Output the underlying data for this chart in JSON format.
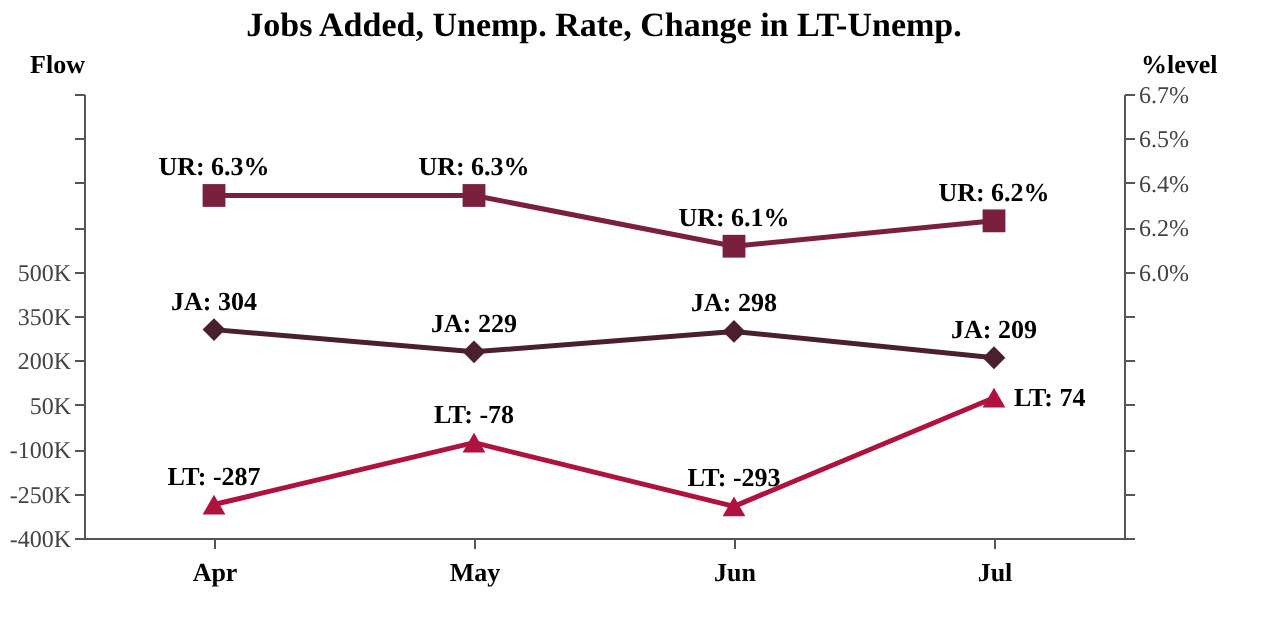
{
  "chart_data": {
    "type": "line",
    "title": "Jobs Added, Unemp. Rate, Change in LT-Unemp.",
    "ylabel": "Flow",
    "y2label": "%level",
    "categories": [
      "Apr",
      "May",
      "Jun",
      "Jul"
    ],
    "series": [
      {
        "color": "#7a1f3d",
        "marker": "square",
        "axis": "y2",
        "values": [
          6.3,
          6.3,
          6.1,
          6.2
        ],
        "value_labels": [
          "UR: 6.3%",
          "UR: 6.3%",
          "UR: 6.1%",
          "UR: 6.2%"
        ]
      },
      {
        "color": "#4a2030",
        "marker": "diamond",
        "values": [
          304,
          229,
          298,
          209
        ],
        "value_labels": [
          "JA: 304",
          "JA: 229",
          "JA: 298",
          "JA: 209"
        ]
      },
      {
        "color": "#b0123f",
        "marker": "triangle",
        "values": [
          -287,
          -78,
          -293,
          74
        ],
        "value_labels": [
          "LT: -287",
          "LT: -78",
          "LT: -293",
          "LT: 74"
        ]
      }
    ],
    "ylim": [
      -400,
      1100
    ],
    "yticks": [
      {
        "value": -400,
        "label": "-400K"
      },
      {
        "value": -250,
        "label": "-250K"
      },
      {
        "value": -100,
        "label": "-100K"
      },
      {
        "value": 50,
        "label": "50K"
      },
      {
        "value": 200,
        "label": "200K"
      },
      {
        "value": 350,
        "label": "350K"
      },
      {
        "value": 500,
        "label": "500K"
      },
      {
        "value": 650,
        "label": null
      },
      {
        "value": 800,
        "label": null
      },
      {
        "value": 950,
        "label": null
      },
      {
        "value": 1100,
        "label": null
      }
    ],
    "y2lim": [
      4.95,
      6.7
    ],
    "y2ticks": [
      {
        "value": 4.95,
        "label": null
      },
      {
        "value": 5.125,
        "label": null
      },
      {
        "value": 5.3,
        "label": null
      },
      {
        "value": 5.475,
        "label": null
      },
      {
        "value": 5.65,
        "label": null
      },
      {
        "value": 5.825,
        "label": null
      },
      {
        "value": 6.0,
        "label": "6.0%"
      },
      {
        "value": 6.175,
        "label": "6.2%"
      },
      {
        "value": 6.35,
        "label": "6.4%"
      },
      {
        "value": 6.525,
        "label": "6.5%"
      },
      {
        "value": 6.7,
        "label": "6.7%"
      }
    ]
  }
}
